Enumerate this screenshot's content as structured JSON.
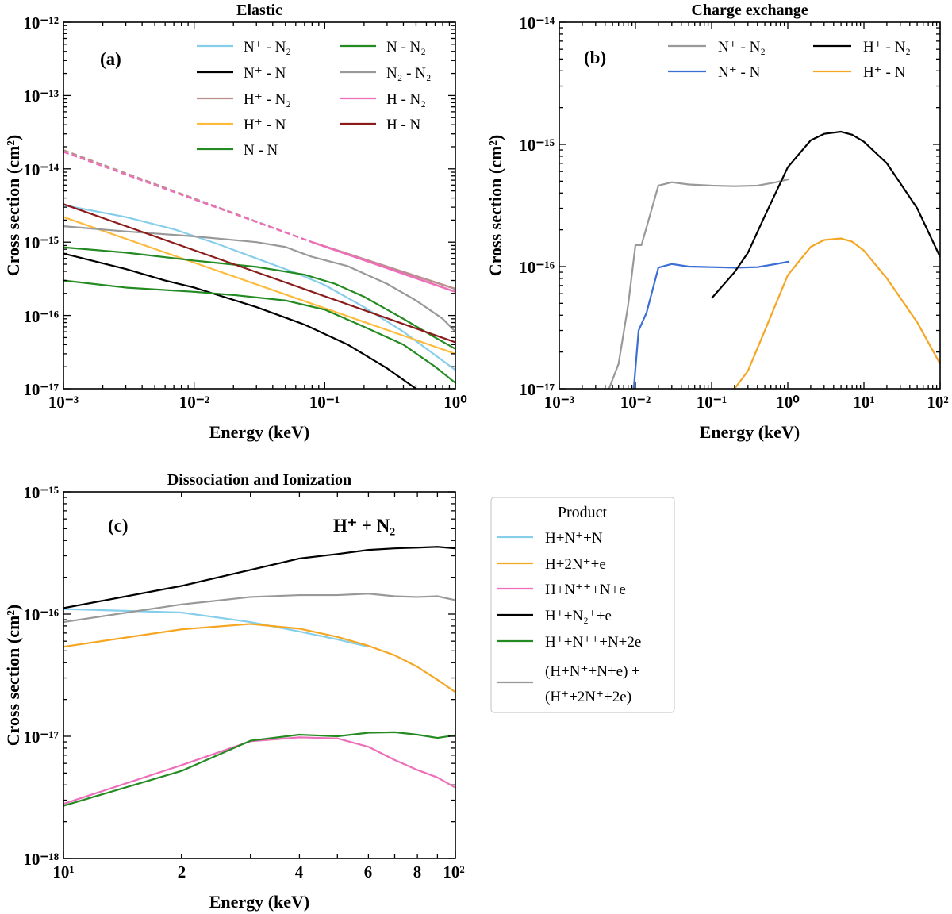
{
  "colors": {
    "skyblue": "#87ceeb",
    "black": "#000000",
    "rosybrown": "#bc8f8f",
    "gold": "#fdbb3c",
    "green": "#238b22",
    "gray": "#999999",
    "hotpink": "#ee6eb9",
    "darkred": "#8b1a1a",
    "royalblue": "#3b6fd6",
    "orange": "#f5a623"
  },
  "chart_data": [
    {
      "id": "a",
      "type": "line",
      "title": "Elastic",
      "panel_label": "(a)",
      "xlabel": "Energy (keV)",
      "ylabel": "Cross section (cm²)",
      "xscale": "log",
      "yscale": "log",
      "xlim": [
        0.001,
        1
      ],
      "ylim": [
        1e-17,
        1e-12
      ],
      "x_tick_labels": [
        "10⁻³",
        "10⁻²",
        "10⁻¹",
        "10⁰"
      ],
      "y_tick_labels": [
        "10⁻¹⁷",
        "10⁻¹⁶",
        "10⁻¹⁵",
        "10⁻¹⁴",
        "10⁻¹³",
        "10⁻¹²"
      ],
      "legend_position": "top-right, two columns",
      "legend_columns": [
        [
          {
            "label": "N⁺ - N₂",
            "color": "skyblue"
          },
          {
            "label": "N⁺ - N",
            "color": "black"
          },
          {
            "label": "H⁺ - N₂",
            "color": "rosybrown"
          },
          {
            "label": "H⁺ - N",
            "color": "gold"
          },
          {
            "label": "N - N",
            "color": "green"
          }
        ],
        [
          {
            "label": "N - N₂",
            "color": "green"
          },
          {
            "label": "N₂ - N₂",
            "color": "gray"
          },
          {
            "label": "H - N₂",
            "color": "hotpink"
          },
          {
            "label": "H - N",
            "color": "darkred"
          }
        ]
      ],
      "series": [
        {
          "name": "H⁺ - N₂",
          "color": "rosybrown",
          "dashed_until": 0.08,
          "x": [
            0.001,
            0.08,
            1
          ],
          "y": [
            1.8e-14,
            1e-15,
            2.3e-16
          ]
        },
        {
          "name": "H - N₂",
          "color": "hotpink",
          "dashed_until": 0.08,
          "x": [
            0.001,
            0.08,
            1
          ],
          "y": [
            1.7e-14,
            1e-15,
            2.1e-16
          ]
        },
        {
          "name": "N⁺ - N₂",
          "color": "skyblue",
          "x": [
            0.001,
            0.003,
            0.007,
            0.015,
            0.03,
            0.06,
            0.1,
            0.2,
            0.4,
            1
          ],
          "y": [
            3.2e-15,
            2.2e-15,
            1.5e-15,
            9.5e-16,
            6e-16,
            3.8e-16,
            2.6e-16,
            1.3e-16,
            6e-17,
            1.8e-17
          ]
        },
        {
          "name": "N⁺ - N",
          "color": "black",
          "x": [
            0.001,
            0.003,
            0.006,
            0.01,
            0.03,
            0.07,
            0.15,
            0.3,
            0.5
          ],
          "y": [
            7e-16,
            4.3e-16,
            3e-16,
            2.4e-16,
            1.3e-16,
            7.5e-17,
            4e-17,
            1.9e-17,
            1e-17
          ]
        },
        {
          "name": "H⁺ - N",
          "color": "gold",
          "x": [
            0.001,
            1
          ],
          "y": [
            2.2e-15,
            3e-17
          ]
        },
        {
          "name": "N - N",
          "color": "green",
          "x": [
            0.001,
            0.003,
            0.01,
            0.02,
            0.05,
            0.1,
            0.2,
            0.4,
            0.7,
            1
          ],
          "y": [
            3e-16,
            2.4e-16,
            2.1e-16,
            1.9e-16,
            1.6e-16,
            1.2e-16,
            7e-17,
            4e-17,
            2e-17,
            1.2e-17
          ]
        },
        {
          "name": "N - N₂",
          "color": "green",
          "x": [
            0.001,
            0.003,
            0.01,
            0.03,
            0.07,
            0.12,
            0.2,
            0.4,
            0.7,
            1
          ],
          "y": [
            8.5e-16,
            7.2e-16,
            5.6e-16,
            4.6e-16,
            3.6e-16,
            2.7e-16,
            1.8e-16,
            9e-17,
            5e-17,
            3.5e-17
          ]
        },
        {
          "name": "N₂ - N₂",
          "color": "gray",
          "x": [
            0.001,
            0.003,
            0.01,
            0.03,
            0.05,
            0.08,
            0.15,
            0.3,
            0.5,
            0.8,
            1
          ],
          "y": [
            1.65e-15,
            1.4e-15,
            1.2e-15,
            1e-15,
            8.6e-16,
            6.3e-16,
            4.7e-16,
            2.7e-16,
            1.6e-16,
            9e-17,
            6e-17
          ]
        },
        {
          "name": "H - N",
          "color": "darkred",
          "x": [
            0.001,
            1
          ],
          "y": [
            3.3e-15,
            4.3e-17
          ]
        }
      ]
    },
    {
      "id": "b",
      "type": "line",
      "title": "Charge exchange",
      "panel_label": "(b)",
      "xlabel": "Energy (keV)",
      "ylabel": "Cross section (cm²)",
      "xscale": "log",
      "yscale": "log",
      "xlim": [
        0.001,
        100
      ],
      "ylim": [
        1e-17,
        1e-14
      ],
      "x_tick_labels": [
        "10⁻³",
        "10⁻²",
        "10⁻¹",
        "10⁰",
        "10¹",
        "10²"
      ],
      "y_tick_labels": [
        "10⁻¹⁷",
        "10⁻¹⁶",
        "10⁻¹⁵",
        "10⁻¹⁴"
      ],
      "legend_position": "top, two columns",
      "legend_columns": [
        [
          {
            "label": "N⁺ - N₂",
            "color": "gray"
          },
          {
            "label": "N⁺ - N",
            "color": "royalblue"
          }
        ],
        [
          {
            "label": "H⁺ - N₂",
            "color": "black"
          },
          {
            "label": "H⁺ - N",
            "color": "orange"
          }
        ]
      ],
      "series": [
        {
          "name": "N⁺ - N₂",
          "color": "gray",
          "x": [
            0.0045,
            0.006,
            0.008,
            0.01,
            0.012,
            0.02,
            0.03,
            0.05,
            0.1,
            0.2,
            0.4,
            0.7,
            1.05
          ],
          "y": [
            1e-17,
            1.6e-17,
            4.8e-17,
            1.5e-16,
            1.5e-16,
            4.6e-16,
            4.9e-16,
            4.7e-16,
            4.6e-16,
            4.55e-16,
            4.6e-16,
            4.9e-16,
            5.2e-16
          ]
        },
        {
          "name": "N⁺ - N",
          "color": "royalblue",
          "x": [
            0.0095,
            0.011,
            0.014,
            0.02,
            0.03,
            0.05,
            0.1,
            0.2,
            0.4,
            0.7,
            1.05
          ],
          "y": [
            1e-17,
            3e-17,
            4.2e-17,
            9.8e-17,
            1.05e-16,
            1e-16,
            9.9e-17,
            9.8e-17,
            9.9e-17,
            1.05e-16,
            1.1e-16
          ]
        },
        {
          "name": "H⁺ - N₂",
          "color": "black",
          "x": [
            0.1,
            0.2,
            0.3,
            0.5,
            1,
            2,
            3,
            5,
            7,
            10,
            20,
            50,
            100
          ],
          "y": [
            5.5e-17,
            9e-17,
            1.3e-16,
            2.6e-16,
            6.5e-16,
            1.08e-15,
            1.22e-15,
            1.27e-15,
            1.2e-15,
            1.05e-15,
            7e-16,
            3e-16,
            1.2e-16
          ]
        },
        {
          "name": "H⁺ - N",
          "color": "orange",
          "x": [
            0.2,
            0.3,
            0.5,
            1,
            2,
            3,
            5,
            7,
            10,
            20,
            50,
            100
          ],
          "y": [
            1e-17,
            1.4e-17,
            3e-17,
            8.5e-17,
            1.45e-16,
            1.65e-16,
            1.7e-16,
            1.6e-16,
            1.35e-16,
            8e-17,
            3.5e-17,
            1.6e-17
          ]
        }
      ]
    },
    {
      "id": "c",
      "type": "line",
      "title": "Dissociation and Ionization",
      "panel_label": "(c)",
      "annotation": "H⁺ + N₂",
      "xlabel": "Energy (keV)",
      "ylabel": "Cross section (cm²)",
      "xscale": "log",
      "yscale": "log",
      "xlim": [
        10,
        100
      ],
      "ylim": [
        1e-18,
        1e-15
      ],
      "x_tick_labels": [
        "10¹",
        "2",
        "4",
        "6",
        "8",
        "10²"
      ],
      "x_tick_values": [
        10,
        20,
        40,
        60,
        80,
        100
      ],
      "y_tick_labels": [
        "10⁻¹⁸",
        "10⁻¹⁷",
        "10⁻¹⁶",
        "10⁻¹⁵"
      ],
      "legend_position": "outside right",
      "legend_title": "Product",
      "legend": [
        {
          "label": "H+N⁺+N",
          "color": "skyblue"
        },
        {
          "label": "H+2N⁺+e",
          "color": "orange"
        },
        {
          "label": "H+N⁺⁺+N+e",
          "color": "hotpink"
        },
        {
          "label": "H⁺+N₂⁺+e",
          "color": "black"
        },
        {
          "label": "H⁺+N⁺⁺+N+2e",
          "color": "green"
        },
        {
          "label": "(H+N⁺+N+e) +",
          "label2": "(H⁺+2N⁺+2e)",
          "color": "gray"
        }
      ],
      "series": [
        {
          "name": "H+N⁺+N",
          "color": "skyblue",
          "x": [
            10,
            20,
            30,
            40,
            50,
            60
          ],
          "y": [
            1.1e-16,
            1.03e-16,
            8.6e-17,
            7.2e-17,
            6.2e-17,
            5.4e-17
          ]
        },
        {
          "name": "H+2N⁺+e",
          "color": "orange",
          "x": [
            10,
            20,
            30,
            40,
            50,
            60,
            70,
            80,
            90,
            100
          ],
          "y": [
            5.4e-17,
            7.5e-17,
            8.3e-17,
            7.6e-17,
            6.5e-17,
            5.5e-17,
            4.6e-17,
            3.7e-17,
            2.9e-17,
            2.3e-17
          ]
        },
        {
          "name": "H+N⁺⁺+N+e",
          "color": "hotpink",
          "x": [
            10,
            20,
            30,
            40,
            50,
            60,
            70,
            80,
            90,
            100
          ],
          "y": [
            2.8e-18,
            5.8e-18,
            9.1e-18,
            9.8e-18,
            9.6e-18,
            8.2e-18,
            6.4e-18,
            5.3e-18,
            4.6e-18,
            3.8e-18
          ]
        },
        {
          "name": "H⁺+N₂⁺+e",
          "color": "black",
          "x": [
            10,
            20,
            30,
            40,
            50,
            60,
            70,
            80,
            90,
            100
          ],
          "y": [
            1.12e-16,
            1.7e-16,
            2.3e-16,
            2.85e-16,
            3.1e-16,
            3.35e-16,
            3.45e-16,
            3.5e-16,
            3.55e-16,
            3.45e-16
          ]
        },
        {
          "name": "H⁺+N⁺⁺+N+2e",
          "color": "green",
          "x": [
            10,
            20,
            30,
            40,
            50,
            60,
            70,
            80,
            90,
            100
          ],
          "y": [
            2.7e-18,
            5.2e-18,
            9.2e-18,
            1.03e-17,
            1e-17,
            1.07e-17,
            1.08e-17,
            1.03e-17,
            9.7e-18,
            1.02e-17
          ]
        },
        {
          "name": "(H+N⁺+N+e) + (H⁺+2N⁺+2e)",
          "color": "gray",
          "x": [
            10,
            20,
            30,
            40,
            50,
            60,
            70,
            80,
            90,
            100
          ],
          "y": [
            8.6e-17,
            1.2e-16,
            1.38e-16,
            1.43e-16,
            1.43e-16,
            1.47e-16,
            1.4e-16,
            1.38e-16,
            1.4e-16,
            1.3e-16
          ]
        }
      ]
    }
  ]
}
